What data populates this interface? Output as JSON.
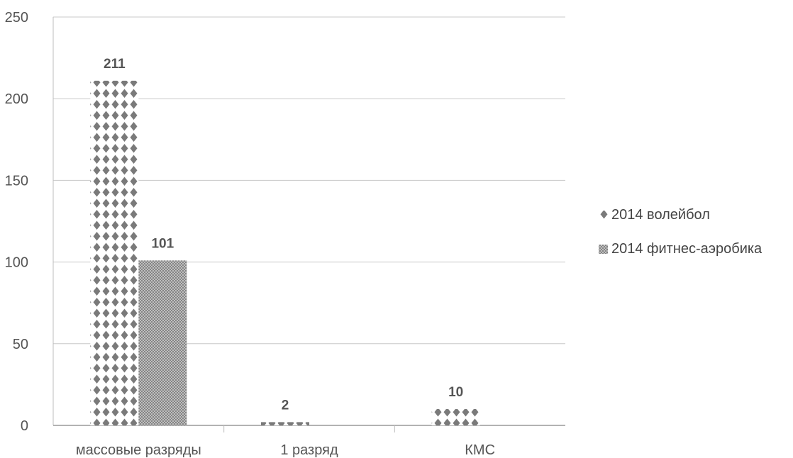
{
  "chart_data": {
    "type": "bar",
    "categories": [
      "массовые разряды",
      "1 разряд",
      "КМС"
    ],
    "series": [
      {
        "name": "2014 волейбол",
        "values": [
          211,
          2,
          10
        ],
        "color": "#7a7a7a",
        "pattern": "diamonds"
      },
      {
        "name": "2014 фитнес-аэробика",
        "values": [
          101,
          0,
          0
        ],
        "color": "#9a9a9a",
        "pattern": "crosshatch"
      }
    ],
    "data_labels": [
      "211",
      "101",
      "2",
      "10"
    ],
    "ylim": [
      0,
      250
    ],
    "yticks": [
      0,
      50,
      100,
      150,
      200,
      250
    ],
    "grid": true,
    "legend_position": "right",
    "title": "",
    "xlabel": "",
    "ylabel": ""
  }
}
